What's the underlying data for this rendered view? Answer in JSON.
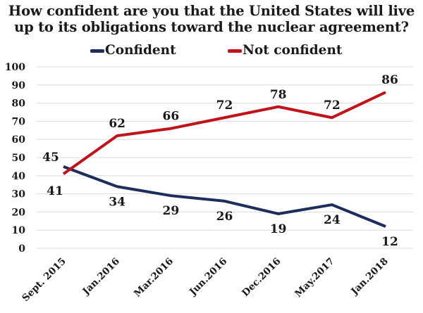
{
  "chart_data": {
    "type": "line",
    "title": "How confident are you that the United States will live up to its obligations toward the nuclear agreement?",
    "title_lines": [
      "How confident are you that the United States will live",
      "up to its obligations toward the nuclear agreement?"
    ],
    "xlabel": "",
    "ylabel": "",
    "categories": [
      "Sept. 2015",
      "Jan.2016",
      "Mar.2016",
      "Jun.2016",
      "Dec.2016",
      "May.2017",
      "Jan.2018"
    ],
    "ylim": [
      0,
      100
    ],
    "yticks": [
      0,
      10,
      20,
      30,
      40,
      50,
      60,
      70,
      80,
      90,
      100
    ],
    "grid": true,
    "legend_position": "top-center",
    "series": [
      {
        "name": "Confident",
        "color": "#1f2d5c",
        "values": [
          45,
          34,
          29,
          26,
          19,
          24,
          12
        ]
      },
      {
        "name": "Not confident",
        "color": "#c0141c",
        "values": [
          41,
          62,
          66,
          72,
          78,
          72,
          86
        ]
      }
    ]
  }
}
